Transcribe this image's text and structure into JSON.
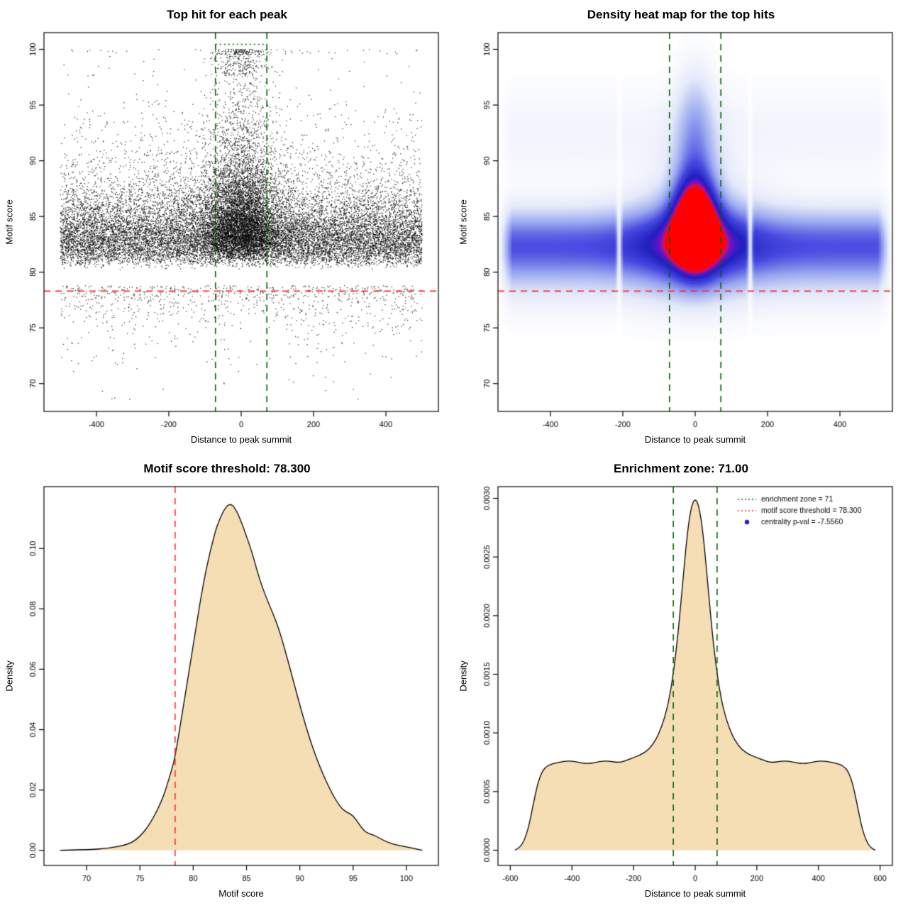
{
  "page": {
    "background": "#ffffff"
  },
  "colors": {
    "threshold_red": "#ff2a2a",
    "zone_green": "#006400",
    "fill_wheat": "#f5deb3",
    "point_black": "#000000",
    "legend_blue": "#2222cc"
  },
  "chart_data": [
    {
      "type": "scatter",
      "title": "Top hit for each peak",
      "xlabel": "Distance to peak summit",
      "ylabel": "Motif score",
      "xlim": [
        -545,
        545
      ],
      "ylim": [
        67.5,
        101.5
      ],
      "xticks": {
        "values": [
          -400,
          -200,
          0,
          200,
          400
        ],
        "labels": [
          "-400",
          "-200",
          "0",
          "200",
          "400"
        ]
      },
      "yticks": {
        "values": [
          70,
          75,
          80,
          85,
          90,
          95,
          100
        ],
        "labels": [
          "70",
          "75",
          "80",
          "85",
          "90",
          "95",
          "100"
        ]
      },
      "threshold_line": {
        "y": 78.3,
        "color": "#ff2a2a",
        "dash": "dashed"
      },
      "zone_lines": {
        "x": [
          -71,
          71
        ],
        "color": "#006400",
        "dash": "dashed"
      },
      "zone_box": {
        "x": [
          -71,
          71
        ],
        "y": [
          99.55,
          100.45
        ],
        "color": "#006400",
        "dash": "dotted"
      },
      "point_color": "#000000",
      "points_model": {
        "seed": 20240613,
        "y_cap": 100,
        "y_min": 68.5,
        "clusters": [
          {
            "n": 13000,
            "x": {
              "dist": "uniform",
              "min": -500,
              "max": 500
            },
            "y": {
              "dist": "gamma",
              "base": 80.2,
              "shape": 3,
              "scale": 1.15
            }
          },
          {
            "n": 2600,
            "x": {
              "dist": "uniform",
              "min": -500,
              "max": 500
            },
            "y": {
              "dist": "gamma",
              "base": 80.4,
              "shape": 2,
              "scale": 2.9
            }
          },
          {
            "n": 900,
            "x": {
              "dist": "uniform",
              "min": -500,
              "max": 500
            },
            "y": {
              "dist": "negexp",
              "base": 78.8,
              "scale": 1.9
            }
          },
          {
            "n": 4200,
            "x": {
              "dist": "normal",
              "mean": 0,
              "sd": 58
            },
            "y": {
              "dist": "gamma",
              "base": 80.8,
              "shape": 3,
              "scale": 1.35
            }
          },
          {
            "n": 2300,
            "x": {
              "dist": "normal",
              "mean": 0,
              "sd": 48
            },
            "y": {
              "dist": "gamma",
              "base": 81.0,
              "shape": 2,
              "scale": 3.6
            }
          },
          {
            "n": 220,
            "x": {
              "dist": "normal",
              "mean": 0,
              "sd": 40
            },
            "y": {
              "dist": "uniform",
              "min": 97.6,
              "max": 100
            }
          }
        ]
      }
    },
    {
      "type": "heatmap",
      "title": "Density heat map for the top hits",
      "xlabel": "Distance to peak summit",
      "ylabel": "Motif score",
      "xlim": [
        -545,
        545
      ],
      "ylim": [
        67.5,
        101.5
      ],
      "xticks": {
        "values": [
          -400,
          -200,
          0,
          200,
          400
        ],
        "labels": [
          "-400",
          "-200",
          "0",
          "200",
          "400"
        ]
      },
      "yticks": {
        "values": [
          70,
          75,
          80,
          85,
          90,
          95,
          100
        ],
        "labels": [
          "70",
          "75",
          "80",
          "85",
          "90",
          "95",
          "100"
        ]
      },
      "threshold_line": {
        "y": 78.3,
        "color": "#ff2a2a",
        "dash": "dashed"
      },
      "zone_lines": {
        "x": [
          -71,
          71
        ],
        "color": "#006400",
        "dash": "dashed"
      },
      "density_components": [
        {
          "amp": 0.4,
          "y0": 82.7,
          "sy": 2.1,
          "x0": 0,
          "band": true
        },
        {
          "amp": 0.18,
          "y0": 80.5,
          "sy": 2.6,
          "x0": 0,
          "band": true
        },
        {
          "amp": 0.07,
          "y0": 92.5,
          "sy": 2.8,
          "x0": 0,
          "band": true
        },
        {
          "amp": 0.38,
          "y0": 83.3,
          "sy": 3.4,
          "x0": 0,
          "sx": 110
        },
        {
          "amp": 0.95,
          "y0": 84.2,
          "sy": 2.7,
          "x0": 0,
          "sx": 40
        },
        {
          "amp": 0.32,
          "y0": 89.5,
          "sy": 4.0,
          "x0": 0,
          "sx": 42
        },
        {
          "amp": 0.12,
          "y0": 95.0,
          "sy": 3.0,
          "x0": 0,
          "sx": 35
        }
      ],
      "gaps": [
        {
          "x": -210,
          "sigma": 5,
          "strength": 0.75
        },
        {
          "x": 152,
          "sigma": 5,
          "strength": 0.75
        }
      ],
      "edge_fade": {
        "start": 505,
        "end": 545
      },
      "palette": [
        [
          0.0,
          "#ffffff"
        ],
        [
          0.15,
          "#e4e9f9"
        ],
        [
          0.35,
          "#97a6ef"
        ],
        [
          0.55,
          "#4747e0"
        ],
        [
          0.72,
          "#1f1fbe"
        ],
        [
          0.82,
          "#6a14c8"
        ],
        [
          0.88,
          "#cc1166"
        ],
        [
          0.93,
          "#ff0000"
        ],
        [
          1.0,
          "#ff0000"
        ]
      ]
    },
    {
      "type": "area",
      "title": "Motif score threshold: 78.300",
      "xlabel": "Motif score",
      "ylabel": "Density",
      "xlim": [
        66,
        103
      ],
      "ylim": [
        -0.005,
        0.1205
      ],
      "xticks": {
        "values": [
          70,
          75,
          80,
          85,
          90,
          95,
          100
        ],
        "labels": [
          "70",
          "75",
          "80",
          "85",
          "90",
          "95",
          "100"
        ]
      },
      "yticks": {
        "values": [
          0,
          0.02,
          0.04,
          0.06,
          0.08,
          0.1
        ],
        "labels": [
          "0.00",
          "0.02",
          "0.04",
          "0.06",
          "0.08",
          "0.10"
        ]
      },
      "fill": "#f5deb3",
      "vlines": [
        {
          "x": 78.3,
          "color": "#ff2a2a",
          "dash": "dashed"
        }
      ],
      "curve": [
        [
          67.5,
          0
        ],
        [
          70,
          0.0002
        ],
        [
          72,
          0.0006
        ],
        [
          74,
          0.002
        ],
        [
          75,
          0.0045
        ],
        [
          76,
          0.009
        ],
        [
          77,
          0.016
        ],
        [
          77.5,
          0.021
        ],
        [
          78,
          0.027
        ],
        [
          78.3,
          0.031
        ],
        [
          79,
          0.046
        ],
        [
          80,
          0.068
        ],
        [
          81,
          0.09
        ],
        [
          82,
          0.105
        ],
        [
          82.5,
          0.11
        ],
        [
          83,
          0.1135
        ],
        [
          83.5,
          0.115
        ],
        [
          84,
          0.113
        ],
        [
          84.5,
          0.109
        ],
        [
          85,
          0.104
        ],
        [
          85.5,
          0.099
        ],
        [
          86,
          0.0925
        ],
        [
          86.5,
          0.087
        ],
        [
          87,
          0.0825
        ],
        [
          88,
          0.074
        ],
        [
          89,
          0.0615
        ],
        [
          90,
          0.048
        ],
        [
          91,
          0.036
        ],
        [
          92,
          0.0265
        ],
        [
          93,
          0.019
        ],
        [
          93.5,
          0.016
        ],
        [
          94,
          0.0135
        ],
        [
          94.5,
          0.0125
        ],
        [
          95,
          0.0115
        ],
        [
          95.5,
          0.009
        ],
        [
          96,
          0.0065
        ],
        [
          96.5,
          0.0055
        ],
        [
          97,
          0.005
        ],
        [
          98,
          0.003
        ],
        [
          99,
          0.0018
        ],
        [
          100,
          0.0012
        ],
        [
          101,
          0.0004
        ],
        [
          101.5,
          0
        ]
      ]
    },
    {
      "type": "area",
      "title": "Enrichment zone: 71.00",
      "xlabel": "Distance to peak summit",
      "ylabel": "Density",
      "xlim": [
        -640,
        640
      ],
      "ylim": [
        -0.00013,
        0.0031
      ],
      "xticks": {
        "values": [
          -600,
          -400,
          -200,
          0,
          200,
          400,
          600
        ],
        "labels": [
          "-600",
          "-400",
          "-200",
          "0",
          "200",
          "400",
          "600"
        ]
      },
      "yticks": {
        "values": [
          0,
          0.0005,
          0.001,
          0.0015,
          0.002,
          0.0025,
          0.003
        ],
        "labels": [
          "0.0000",
          "0.0005",
          "0.0010",
          "0.0015",
          "0.0020",
          "0.0025",
          "0.0030"
        ]
      },
      "fill": "#f5deb3",
      "vlines": [
        {
          "x": -71,
          "color": "#006400",
          "dash": "dashed"
        },
        {
          "x": 71,
          "color": "#006400",
          "dash": "dashed"
        }
      ],
      "legend": {
        "items": [
          {
            "swatch": "dotted-line",
            "color": "#006400",
            "label": "enrichment zone = 71"
          },
          {
            "swatch": "dotted-line",
            "color": "#ff2a2a",
            "label": "motif score threshold = 78.300"
          },
          {
            "swatch": "dot",
            "color": "#2222cc",
            "label": "centrality p-val = -7.5560"
          }
        ]
      },
      "curve": [
        [
          -585,
          0
        ],
        [
          -570,
          2e-05
        ],
        [
          -555,
          8e-05
        ],
        [
          -540,
          0.0002
        ],
        [
          -525,
          0.0004
        ],
        [
          -510,
          0.00058
        ],
        [
          -495,
          0.00068
        ],
        [
          -480,
          0.00072
        ],
        [
          -460,
          0.00074
        ],
        [
          -440,
          0.00075
        ],
        [
          -420,
          0.00076
        ],
        [
          -400,
          0.00076
        ],
        [
          -380,
          0.00075
        ],
        [
          -360,
          0.00074
        ],
        [
          -340,
          0.00074
        ],
        [
          -320,
          0.00075
        ],
        [
          -300,
          0.00076
        ],
        [
          -280,
          0.00076
        ],
        [
          -260,
          0.00075
        ],
        [
          -240,
          0.00075
        ],
        [
          -220,
          0.00077
        ],
        [
          -200,
          0.00079
        ],
        [
          -180,
          0.00081
        ],
        [
          -160,
          0.00084
        ],
        [
          -140,
          0.00089
        ],
        [
          -120,
          0.00098
        ],
        [
          -100,
          0.00112
        ],
        [
          -85,
          0.00128
        ],
        [
          -70,
          0.00152
        ],
        [
          -55,
          0.00186
        ],
        [
          -40,
          0.0023
        ],
        [
          -25,
          0.00272
        ],
        [
          -12,
          0.00294
        ],
        [
          0,
          0.003
        ],
        [
          12,
          0.00294
        ],
        [
          25,
          0.00272
        ],
        [
          40,
          0.0023
        ],
        [
          55,
          0.00186
        ],
        [
          70,
          0.00152
        ],
        [
          85,
          0.00128
        ],
        [
          100,
          0.00112
        ],
        [
          120,
          0.00098
        ],
        [
          140,
          0.00089
        ],
        [
          160,
          0.00084
        ],
        [
          180,
          0.00081
        ],
        [
          200,
          0.00079
        ],
        [
          220,
          0.00077
        ],
        [
          240,
          0.00075
        ],
        [
          260,
          0.00075
        ],
        [
          280,
          0.00076
        ],
        [
          300,
          0.00076
        ],
        [
          320,
          0.00075
        ],
        [
          340,
          0.00074
        ],
        [
          360,
          0.00074
        ],
        [
          380,
          0.00075
        ],
        [
          400,
          0.00076
        ],
        [
          420,
          0.00076
        ],
        [
          440,
          0.00075
        ],
        [
          460,
          0.00074
        ],
        [
          480,
          0.00072
        ],
        [
          495,
          0.00068
        ],
        [
          510,
          0.00058
        ],
        [
          525,
          0.0004
        ],
        [
          540,
          0.0002
        ],
        [
          555,
          8e-05
        ],
        [
          570,
          2e-05
        ],
        [
          585,
          0
        ]
      ]
    }
  ]
}
